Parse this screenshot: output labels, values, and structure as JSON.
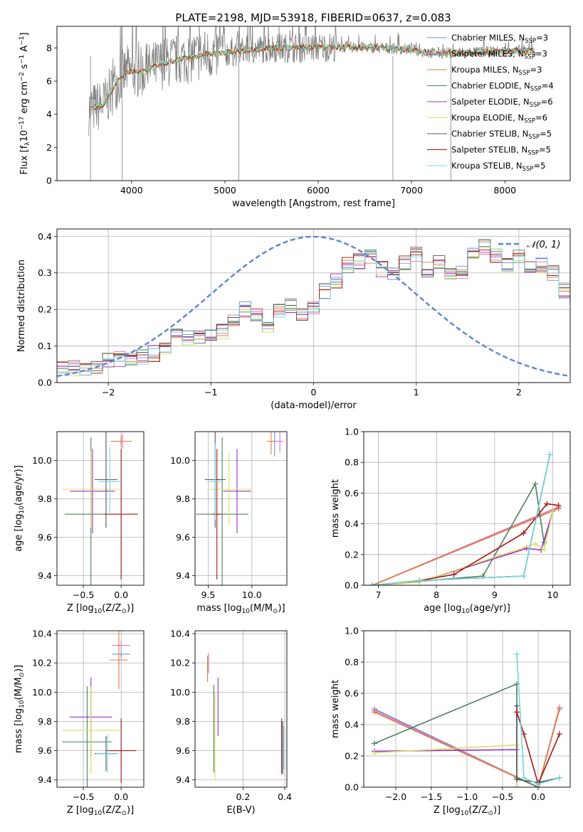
{
  "title": "PLATE=2198, MJD=53918, FIBERID=0637, z=0.083",
  "colors": {
    "Chabrier MILES": "#6f8fd6",
    "Salpeter MILES": "#e377c2",
    "Kroupa MILES": "#e07b39",
    "Chabrier ELODIE": "#4f7f5f",
    "Salpeter ELODIE": "#9b30c8",
    "Kroupa ELODIE": "#d8e060",
    "Chabrier STELIB": "#555555",
    "Salpeter STELIB": "#aa1111",
    "Kroupa STELIB": "#72d5e0",
    "data": "#808080"
  },
  "chart_data": [
    {
      "id": "spectrum",
      "type": "line",
      "title": "PLATE=2198, MJD=53918, FIBERID=0637, z=0.083",
      "xlabel": "wavelength [Angstrom, rest frame]",
      "ylabel": "Flux [f",
      "ylabel_sub": "λ",
      "ylabel_mid": "10",
      "ylabel_exp1": "−17",
      "ylabel_mid2": " erg cm",
      "ylabel_exp2": "−2",
      "ylabel_mid3": " s",
      "ylabel_exp3": "−1",
      "ylabel_mid4": " A",
      "ylabel_exp4": "−1",
      "ylabel_end": "]",
      "xlim": [
        3200,
        8700
      ],
      "ylim": [
        0,
        9.3
      ],
      "xticks": [
        4000,
        5000,
        6000,
        7000,
        8000
      ],
      "yticks": [
        0,
        2,
        4,
        6,
        8
      ],
      "grid": false,
      "legend_loc": "right",
      "model_points": [
        [
          3550,
          4.3
        ],
        [
          3700,
          4.6
        ],
        [
          3850,
          6.0
        ],
        [
          3950,
          6.6
        ],
        [
          4100,
          6.5
        ],
        [
          4300,
          7.0
        ],
        [
          4500,
          7.3
        ],
        [
          4800,
          7.6
        ],
        [
          5000,
          7.7
        ],
        [
          5200,
          7.85
        ],
        [
          5500,
          8.0
        ],
        [
          5800,
          8.0
        ],
        [
          6100,
          8.05
        ],
        [
          6400,
          8.05
        ],
        [
          6700,
          8.0
        ],
        [
          7000,
          7.9
        ],
        [
          7200,
          7.7
        ],
        [
          7400,
          7.7
        ],
        [
          7800,
          7.75
        ],
        [
          8300,
          7.85
        ]
      ],
      "legend": [
        {
          "label": "Chabrier MILES, N",
          "sub": "SSP",
          "end": "=3",
          "key": "Chabrier MILES"
        },
        {
          "label": "Salpeter MILES, N",
          "sub": "SSP",
          "end": "=3",
          "key": "Salpeter MILES"
        },
        {
          "label": "Kroupa MILES, N",
          "sub": "SSP",
          "end": "=3",
          "key": "Kroupa MILES"
        },
        {
          "label": "Chabrier ELODIE, N",
          "sub": "SSP",
          "end": "=4",
          "key": "Chabrier ELODIE"
        },
        {
          "label": "Salpeter ELODIE, N",
          "sub": "SSP",
          "end": "=6",
          "key": "Salpeter ELODIE"
        },
        {
          "label": "Kroupa ELODIE, N",
          "sub": "SSP",
          "end": "=6",
          "key": "Kroupa ELODIE"
        },
        {
          "label": "Chabrier STELIB, N",
          "sub": "SSP",
          "end": "=5",
          "key": "Chabrier STELIB"
        },
        {
          "label": "Salpeter STELIB, N",
          "sub": "SSP",
          "end": "=5",
          "key": "Salpeter STELIB"
        },
        {
          "label": "Kroupa STELIB, N",
          "sub": "SSP",
          "end": "=5",
          "key": "Kroupa STELIB"
        }
      ]
    },
    {
      "id": "residuals",
      "type": "line",
      "xlabel": "(data-model)/error",
      "ylabel": "Normed distribution",
      "xlim": [
        -2.5,
        2.5
      ],
      "ylim": [
        0,
        0.42
      ],
      "xticks": [
        -2,
        -1,
        0,
        1,
        2
      ],
      "yticks": [
        0.0,
        0.1,
        0.2,
        0.3,
        0.4
      ],
      "grid": true,
      "legend_loc": "upper right",
      "normal_label": "𝒩(0, 1)",
      "bin_width": 0.1,
      "hist_base": [
        0.04,
        0.04,
        0.035,
        0.045,
        0.06,
        0.065,
        0.06,
        0.07,
        0.08,
        0.09,
        0.14,
        0.12,
        0.13,
        0.13,
        0.14,
        0.17,
        0.2,
        0.18,
        0.16,
        0.2,
        0.21,
        0.19,
        0.2,
        0.25,
        0.28,
        0.32,
        0.33,
        0.34,
        0.31,
        0.3,
        0.33,
        0.35,
        0.31,
        0.33,
        0.29,
        0.3,
        0.35,
        0.37,
        0.35,
        0.32,
        0.34,
        0.31,
        0.32,
        0.3,
        0.25,
        0.33,
        0.35,
        0.32,
        0.3,
        0.29,
        0.32,
        0.31,
        0.3,
        0.27,
        0.28,
        0.25,
        0.3,
        0.26,
        0.24,
        0.3,
        0.24,
        0.26,
        0.25,
        0.24,
        0.22,
        0.2,
        0.17,
        0.16,
        0.16,
        0.15,
        0.13,
        0.13,
        0.14,
        0.12,
        0.1,
        0.09,
        0.11,
        0.07,
        0.08,
        0.06,
        0.06,
        0.055,
        0.05,
        0.04,
        0.045,
        0.05,
        0.04,
        0.045,
        0.05,
        0.045,
        0.05
      ]
    },
    {
      "id": "age_vs_Z",
      "type": "scatter",
      "xlabel": "Z [log",
      "xlabel_sub": "10",
      "xlabel_mid": "(Z/Z",
      "xlabel_sub2": "⊙",
      "xlabel_end": ")]",
      "ylabel": "age  [log",
      "ylabel_sub": "10",
      "ylabel_end": "(age/yr)]",
      "xlim": [
        -0.85,
        0.3
      ],
      "ylim": [
        9.35,
        10.15
      ],
      "xticks": [
        -0.5,
        0.0
      ],
      "xticklabels": [
        "−0.5",
        "0.0"
      ],
      "yticks": [
        9.4,
        9.6,
        9.8,
        10.0
      ],
      "grid": true,
      "points": [
        {
          "key": "Chabrier MILES",
          "x": 0.0,
          "y": 10.1,
          "xerr": 0.12,
          "yerr": 0.02
        },
        {
          "key": "Salpeter MILES",
          "x": 0.02,
          "y": 10.1,
          "xerr": 0.1,
          "yerr": 0.04
        },
        {
          "key": "Kroupa MILES",
          "x": 0.0,
          "y": 10.1,
          "xerr": 0.14,
          "yerr": 0.03
        },
        {
          "key": "Chabrier ELODIE",
          "x": -0.4,
          "y": 9.72,
          "xerr": 0.35,
          "yerr": 0.4
        },
        {
          "key": "Salpeter ELODIE",
          "x": -0.38,
          "y": 9.84,
          "xerr": 0.3,
          "yerr": 0.22
        },
        {
          "key": "Kroupa ELODIE",
          "x": -0.4,
          "y": 9.85,
          "xerr": 0.38,
          "yerr": 0.2
        },
        {
          "key": "Chabrier STELIB",
          "x": -0.2,
          "y": 9.9,
          "xerr": 0.15,
          "yerr": 0.25
        },
        {
          "key": "Salpeter STELIB",
          "x": 0.0,
          "y": 9.72,
          "xerr": 0.22,
          "yerr": 0.34
        },
        {
          "key": "Kroupa STELIB",
          "x": -0.15,
          "y": 9.89,
          "xerr": 0.15,
          "yerr": 0.18
        }
      ]
    },
    {
      "id": "age_vs_mass",
      "type": "scatter",
      "xlabel": "mass [log",
      "xlabel_sub": "10",
      "xlabel_mid": "(M/M",
      "xlabel_sub2": "⊙",
      "xlabel_end": ")]",
      "xlim": [
        9.35,
        10.4
      ],
      "ylim": [
        9.35,
        10.15
      ],
      "xticks": [
        9.5,
        10.0
      ],
      "xticklabels": [
        "9.5",
        "10.0"
      ],
      "yticks": [
        9.4,
        9.6,
        9.8,
        10.0
      ],
      "grid": true,
      "points": [
        {
          "key": "Chabrier MILES",
          "x": 10.26,
          "y": 10.1,
          "xerr": 0.03,
          "yerr": 0.08
        },
        {
          "key": "Salpeter MILES",
          "x": 10.32,
          "y": 10.1,
          "xerr": 0.04,
          "yerr": 0.06
        },
        {
          "key": "Kroupa MILES",
          "x": 10.22,
          "y": 10.1,
          "xerr": 0.05,
          "yerr": 0.07
        },
        {
          "key": "Chabrier ELODIE",
          "x": 9.66,
          "y": 9.72,
          "xerr": 0.3,
          "yerr": 0.4
        },
        {
          "key": "Salpeter ELODIE",
          "x": 9.83,
          "y": 9.84,
          "xerr": 0.16,
          "yerr": 0.22
        },
        {
          "key": "Kroupa ELODIE",
          "x": 9.74,
          "y": 9.85,
          "xerr": 0.25,
          "yerr": 0.19
        },
        {
          "key": "Chabrier STELIB",
          "x": 9.58,
          "y": 9.9,
          "xerr": 0.12,
          "yerr": 0.25
        },
        {
          "key": "Salpeter STELIB",
          "x": 9.6,
          "y": 9.72,
          "xerr": 0.05,
          "yerr": 0.34
        },
        {
          "key": "Kroupa STELIB",
          "x": 9.58,
          "y": 9.89,
          "xerr": 0.07,
          "yerr": 0.2
        }
      ]
    },
    {
      "id": "weight_vs_age",
      "type": "line",
      "xlabel": "age  [log",
      "xlabel_sub": "10",
      "xlabel_end": "(age/yr)]",
      "ylabel": "mass weight",
      "xlim": [
        6.75,
        10.3
      ],
      "ylim": [
        0,
        1
      ],
      "xticks": [
        7,
        8,
        9,
        10
      ],
      "yticks": [
        0.0,
        0.2,
        0.4,
        0.6,
        0.8,
        1.0
      ],
      "grid": true,
      "series": [
        {
          "key": "Chabrier MILES",
          "x": [
            6.9,
            10.1
          ],
          "y": [
            0.0,
            0.5
          ]
        },
        {
          "key": "Salpeter MILES",
          "x": [
            6.9,
            10.1
          ],
          "y": [
            0.0,
            0.51
          ]
        },
        {
          "key": "Kroupa MILES",
          "x": [
            6.9,
            10.1
          ],
          "y": [
            0.0,
            0.5
          ]
        },
        {
          "key": "Chabrier ELODIE",
          "x": [
            6.9,
            8.8,
            9.7,
            9.85,
            10.0
          ],
          "y": [
            0.0,
            0.06,
            0.66,
            0.28,
            0.48
          ]
        },
        {
          "key": "Salpeter ELODIE",
          "x": [
            6.9,
            7.7,
            9.55,
            9.8,
            10.0
          ],
          "y": [
            0.0,
            0.02,
            0.24,
            0.23,
            0.48
          ]
        },
        {
          "key": "Kroupa ELODIE",
          "x": [
            6.9,
            7.7,
            9.7,
            9.85,
            10.0
          ],
          "y": [
            0.0,
            0.02,
            0.27,
            0.23,
            0.48
          ]
        },
        {
          "key": "Chabrier STELIB",
          "x": [
            6.9,
            7.7,
            9.5,
            9.95
          ],
          "y": [
            0.0,
            0.03,
            0.06,
            0.85
          ]
        },
        {
          "key": "Salpeter STELIB",
          "x": [
            6.9,
            7.7,
            8.3,
            9.5,
            9.9,
            10.1
          ],
          "y": [
            0.0,
            0.03,
            0.07,
            0.34,
            0.53,
            0.52
          ]
        },
        {
          "key": "Kroupa STELIB",
          "x": [
            6.9,
            7.7,
            9.5,
            9.95
          ],
          "y": [
            0.0,
            0.03,
            0.06,
            0.85
          ]
        }
      ]
    },
    {
      "id": "mass_vs_Z",
      "type": "scatter",
      "xlabel": "Z [log",
      "xlabel_sub": "10",
      "xlabel_mid": "(Z/Z",
      "xlabel_sub2": "⊙",
      "xlabel_end": ")]",
      "ylabel": "mass [log",
      "ylabel_sub": "10",
      "ylabel_mid": "(M/M",
      "ylabel_sub2": "⊙",
      "ylabel_end": ")]",
      "xlim": [
        -0.85,
        0.3
      ],
      "ylim": [
        9.35,
        10.42
      ],
      "xticks": [
        -0.5,
        0.0
      ],
      "xticklabels": [
        "−0.5",
        "0.0"
      ],
      "yticks": [
        9.4,
        9.6,
        9.8,
        10.0,
        10.2,
        10.4
      ],
      "grid": true,
      "points": [
        {
          "key": "Chabrier MILES",
          "x": 0.0,
          "y": 10.26,
          "xerr": 0.12,
          "yerr": 0.03
        },
        {
          "key": "Salpeter MILES",
          "x": 0.0,
          "y": 10.32,
          "xerr": 0.12,
          "yerr": 0.03
        },
        {
          "key": "Kroupa MILES",
          "x": -0.03,
          "y": 10.22,
          "xerr": 0.12,
          "yerr": 0.2
        },
        {
          "key": "Chabrier ELODIE",
          "x": -0.45,
          "y": 9.66,
          "xerr": 0.33,
          "yerr": 0.38
        },
        {
          "key": "Salpeter ELODIE",
          "x": -0.4,
          "y": 9.83,
          "xerr": 0.28,
          "yerr": 0.27
        },
        {
          "key": "Kroupa ELODIE",
          "x": -0.4,
          "y": 9.74,
          "xerr": 0.38,
          "yerr": 0.3
        },
        {
          "key": "Chabrier STELIB",
          "x": -0.2,
          "y": 9.58,
          "xerr": 0.15,
          "yerr": 0.12
        },
        {
          "key": "Salpeter STELIB",
          "x": 0.0,
          "y": 9.6,
          "xerr": 0.2,
          "yerr": 0.22
        },
        {
          "key": "Kroupa STELIB",
          "x": -0.18,
          "y": 9.58,
          "xerr": 0.15,
          "yerr": 0.13
        }
      ]
    },
    {
      "id": "mass_vs_EBV",
      "type": "scatter",
      "xlabel": "E(B-V)",
      "xlim": [
        -0.03,
        0.41
      ],
      "ylim": [
        9.35,
        10.42
      ],
      "xticks": [
        0.2,
        0.4
      ],
      "xticklabels": [
        "0.2",
        "0.4"
      ],
      "yticks": [
        9.4,
        9.6,
        9.8,
        10.0,
        10.2,
        10.4
      ],
      "grid": true,
      "points": [
        {
          "key": "Chabrier MILES",
          "x": 0.03,
          "y": 10.2,
          "yerr": 0.05
        },
        {
          "key": "Salpeter MILES",
          "x": 0.035,
          "y": 10.2,
          "yerr": 0.07
        },
        {
          "key": "Kroupa MILES",
          "x": 0.03,
          "y": 10.15,
          "yerr": 0.08
        },
        {
          "key": "Chabrier ELODIE",
          "x": 0.06,
          "y": 9.75,
          "yerr": 0.3
        },
        {
          "key": "Salpeter ELODIE",
          "x": 0.08,
          "y": 9.9,
          "yerr": 0.2
        },
        {
          "key": "Kroupa ELODIE",
          "x": 0.065,
          "y": 9.7,
          "yerr": 0.3
        },
        {
          "key": "Chabrier STELIB",
          "x": 0.39,
          "y": 9.62,
          "yerr": 0.18
        },
        {
          "key": "Salpeter STELIB",
          "x": 0.385,
          "y": 9.63,
          "yerr": 0.19
        },
        {
          "key": "Kroupa STELIB",
          "x": 0.395,
          "y": 9.62,
          "yerr": 0.15
        }
      ]
    },
    {
      "id": "weight_vs_Z",
      "type": "line",
      "xlabel": "Z [log",
      "xlabel_sub": "10",
      "xlabel_mid": "(Z/Z",
      "xlabel_sub2": "⊙",
      "xlabel_end": ")]",
      "ylabel": "mass weight",
      "xlim": [
        -2.45,
        0.45
      ],
      "ylim": [
        0,
        1
      ],
      "xticks": [
        -2.0,
        -1.5,
        -1.0,
        -0.5,
        0.0
      ],
      "xticklabels": [
        "−2.0",
        "−1.5",
        "−1.0",
        "−0.5",
        "0.0"
      ],
      "yticks": [
        0.0,
        0.2,
        0.4,
        0.6,
        0.8,
        1.0
      ],
      "grid": true,
      "series": [
        {
          "key": "Chabrier MILES",
          "x": [
            -2.3,
            0.0,
            0.3
          ],
          "y": [
            0.5,
            0.0,
            0.5
          ]
        },
        {
          "key": "Salpeter MILES",
          "x": [
            -2.3,
            0.0,
            0.3
          ],
          "y": [
            0.49,
            0.0,
            0.51
          ]
        },
        {
          "key": "Kroupa MILES",
          "x": [
            -2.3,
            0.0,
            0.3
          ],
          "y": [
            0.48,
            0.0,
            0.5
          ]
        },
        {
          "key": "Chabrier ELODIE",
          "x": [
            -2.3,
            -0.3,
            -0.3,
            0.0
          ],
          "y": [
            0.28,
            0.66,
            0.06,
            0.0
          ]
        },
        {
          "key": "Salpeter ELODIE",
          "x": [
            -2.3,
            -0.3,
            -0.3
          ],
          "y": [
            0.23,
            0.24,
            0.0
          ]
        },
        {
          "key": "Kroupa ELODIE",
          "x": [
            -2.3,
            -0.3,
            -0.3
          ],
          "y": [
            0.22,
            0.27,
            0.0
          ]
        },
        {
          "key": "Chabrier STELIB",
          "x": [
            -0.3,
            -0.3,
            0.0,
            0.3
          ],
          "y": [
            0.52,
            0.05,
            0.03,
            0.06
          ]
        },
        {
          "key": "Salpeter STELIB",
          "x": [
            -0.3,
            -0.2,
            0.0,
            0.3
          ],
          "y": [
            0.48,
            0.34,
            0.02,
            0.34
          ]
        },
        {
          "key": "Kroupa STELIB",
          "x": [
            -0.3,
            -0.2,
            0.0,
            0.3
          ],
          "y": [
            0.85,
            0.06,
            0.02,
            0.06
          ]
        }
      ]
    }
  ]
}
